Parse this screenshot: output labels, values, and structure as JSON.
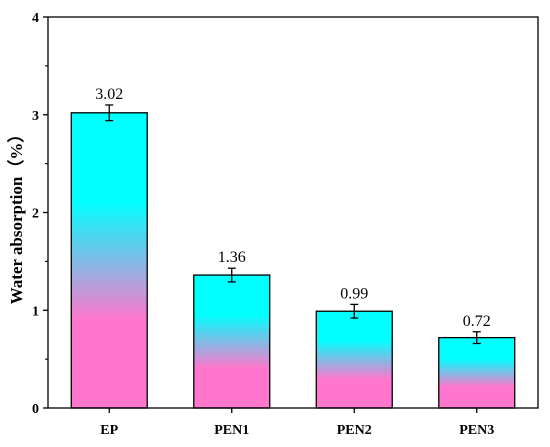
{
  "chart_data": {
    "type": "bar",
    "title": "",
    "xlabel": "",
    "ylabel": "Water absorption（%）",
    "categories": [
      "EP",
      "PEN1",
      "PEN2",
      "PEN3"
    ],
    "values": [
      3.02,
      1.36,
      0.99,
      0.72
    ],
    "errors": [
      0.08,
      0.07,
      0.07,
      0.06
    ],
    "data_labels": [
      "3.02",
      "1.36",
      "0.99",
      "0.72"
    ],
    "ylim": [
      0,
      4
    ],
    "yticks": [
      0,
      1,
      2,
      3,
      4
    ],
    "ytick_labels": [
      "0",
      "1",
      "2",
      "3",
      "4"
    ],
    "grid": false,
    "legend": "none",
    "bar_gradient": {
      "top": "#00ffff",
      "bottom": "#ff77cc"
    }
  }
}
